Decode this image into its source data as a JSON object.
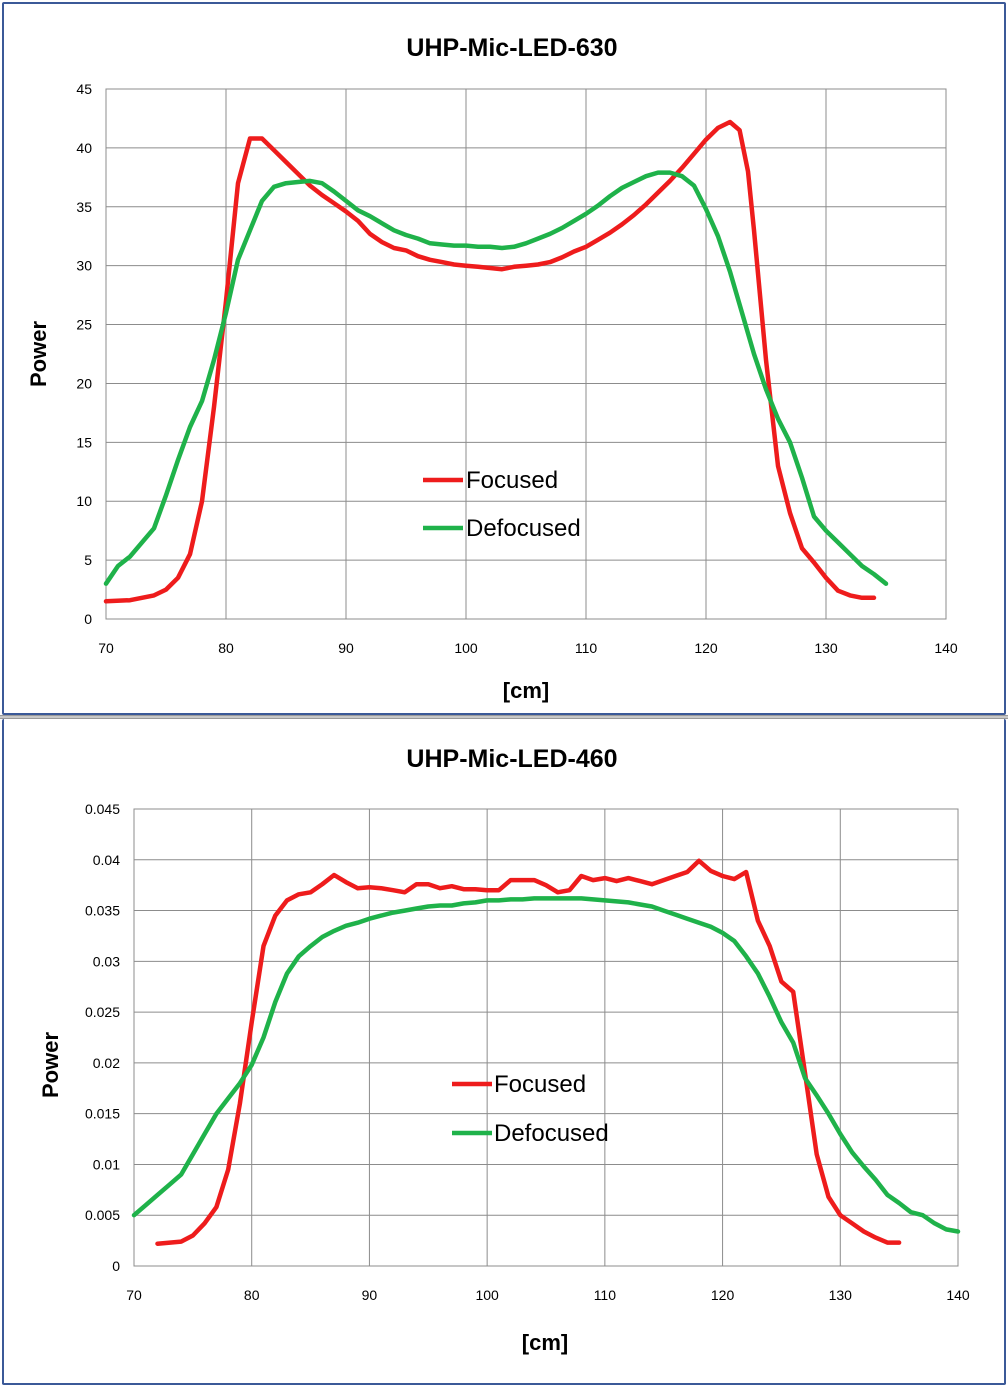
{
  "colors": {
    "focused": "#ee1c1c",
    "defocused": "#1fb24a",
    "frame": "#3b5998",
    "grid": "#8c8c8c"
  },
  "chart_data": [
    {
      "type": "line",
      "title": "UHP-Mic-LED-630",
      "xlabel": "[cm]",
      "ylabel": "Power",
      "xlim": [
        70,
        140
      ],
      "ylim": [
        0,
        45
      ],
      "x_ticks": [
        "70",
        "80",
        "90",
        "100",
        "110",
        "120",
        "130",
        "140"
      ],
      "y_ticks": [
        "0",
        "5",
        "10",
        "15",
        "20",
        "25",
        "30",
        "35",
        "40",
        "45"
      ],
      "grid": true,
      "legend_position": "center",
      "series": [
        {
          "name": "Focused",
          "color": "#ee1c1c",
          "points": [
            [
              70,
              1.5
            ],
            [
              72,
              1.6
            ],
            [
              74,
              2.0
            ],
            [
              75,
              2.5
            ],
            [
              76,
              3.5
            ],
            [
              77,
              5.5
            ],
            [
              78,
              10
            ],
            [
              79,
              18
            ],
            [
              80,
              27
            ],
            [
              81,
              37
            ],
            [
              82,
              40.8
            ],
            [
              83,
              40.8
            ],
            [
              84,
              39.8
            ],
            [
              85,
              38.8
            ],
            [
              86,
              37.8
            ],
            [
              87,
              36.8
            ],
            [
              88,
              36
            ],
            [
              89,
              35.3
            ],
            [
              90,
              34.6
            ],
            [
              91,
              33.8
            ],
            [
              92,
              32.7
            ],
            [
              93,
              32
            ],
            [
              94,
              31.5
            ],
            [
              95,
              31.3
            ],
            [
              96,
              30.8
            ],
            [
              97,
              30.5
            ],
            [
              98,
              30.3
            ],
            [
              99,
              30.1
            ],
            [
              100,
              30
            ],
            [
              101,
              29.9
            ],
            [
              102,
              29.8
            ],
            [
              103,
              29.7
            ],
            [
              104,
              29.9
            ],
            [
              105,
              30
            ],
            [
              106,
              30.1
            ],
            [
              107,
              30.3
            ],
            [
              108,
              30.7
            ],
            [
              109,
              31.2
            ],
            [
              110,
              31.6
            ],
            [
              111,
              32.2
            ],
            [
              112,
              32.8
            ],
            [
              113,
              33.5
            ],
            [
              114,
              34.3
            ],
            [
              115,
              35.2
            ],
            [
              116,
              36.2
            ],
            [
              117,
              37.2
            ],
            [
              118,
              38.3
            ],
            [
              119,
              39.5
            ],
            [
              120,
              40.7
            ],
            [
              121,
              41.7
            ],
            [
              122,
              42.2
            ],
            [
              122.8,
              41.5
            ],
            [
              123.5,
              38
            ],
            [
              124,
              33
            ],
            [
              125,
              22
            ],
            [
              126,
              13
            ],
            [
              127,
              9
            ],
            [
              128,
              6
            ],
            [
              129,
              4.8
            ],
            [
              130,
              3.5
            ],
            [
              131,
              2.4
            ],
            [
              132,
              2
            ],
            [
              133,
              1.8
            ],
            [
              134,
              1.8
            ]
          ]
        },
        {
          "name": "Defocused",
          "color": "#1fb24a",
          "points": [
            [
              70,
              3
            ],
            [
              71,
              4.5
            ],
            [
              72,
              5.3
            ],
            [
              73,
              6.5
            ],
            [
              74,
              7.7
            ],
            [
              75,
              10.5
            ],
            [
              76,
              13.5
            ],
            [
              77,
              16.3
            ],
            [
              78,
              18.5
            ],
            [
              79,
              22
            ],
            [
              80,
              26
            ],
            [
              81,
              30.5
            ],
            [
              82,
              33
            ],
            [
              83,
              35.5
            ],
            [
              84,
              36.7
            ],
            [
              85,
              37
            ],
            [
              86,
              37.1
            ],
            [
              87,
              37.2
            ],
            [
              88,
              37
            ],
            [
              89,
              36.3
            ],
            [
              90,
              35.5
            ],
            [
              91,
              34.7
            ],
            [
              92,
              34.2
            ],
            [
              93,
              33.6
            ],
            [
              94,
              33
            ],
            [
              95,
              32.6
            ],
            [
              96,
              32.3
            ],
            [
              97,
              31.9
            ],
            [
              98,
              31.8
            ],
            [
              99,
              31.7
            ],
            [
              100,
              31.7
            ],
            [
              101,
              31.6
            ],
            [
              102,
              31.6
            ],
            [
              103,
              31.5
            ],
            [
              104,
              31.6
            ],
            [
              105,
              31.9
            ],
            [
              106,
              32.3
            ],
            [
              107,
              32.7
            ],
            [
              108,
              33.2
            ],
            [
              109,
              33.8
            ],
            [
              110,
              34.4
            ],
            [
              111,
              35.1
            ],
            [
              112,
              35.9
            ],
            [
              113,
              36.6
            ],
            [
              114,
              37.1
            ],
            [
              115,
              37.6
            ],
            [
              116,
              37.9
            ],
            [
              117,
              37.9
            ],
            [
              118,
              37.6
            ],
            [
              119,
              36.8
            ],
            [
              120,
              34.8
            ],
            [
              121,
              32.5
            ],
            [
              122,
              29.5
            ],
            [
              123,
              26
            ],
            [
              124,
              22.5
            ],
            [
              125,
              19.5
            ],
            [
              126,
              17
            ],
            [
              127,
              15
            ],
            [
              128,
              12
            ],
            [
              129,
              8.7
            ],
            [
              130,
              7.5
            ],
            [
              131,
              6.5
            ],
            [
              132,
              5.5
            ],
            [
              133,
              4.5
            ],
            [
              134,
              3.8
            ],
            [
              135,
              3
            ]
          ]
        }
      ]
    },
    {
      "type": "line",
      "title": "UHP-Mic-LED-460",
      "xlabel": "[cm]",
      "ylabel": "Power",
      "xlim": [
        70,
        140
      ],
      "ylim": [
        0,
        0.045
      ],
      "x_ticks": [
        "70",
        "80",
        "90",
        "100",
        "110",
        "120",
        "130",
        "140"
      ],
      "y_ticks": [
        "0",
        "0.005",
        "0.01",
        "0.015",
        "0.02",
        "0.025",
        "0.03",
        "0.035",
        "0.04",
        "0.045"
      ],
      "grid": true,
      "legend_position": "center",
      "series": [
        {
          "name": "Focused",
          "color": "#ee1c1c",
          "points": [
            [
              72,
              0.0022
            ],
            [
              74,
              0.0024
            ],
            [
              75,
              0.003
            ],
            [
              76,
              0.0042
            ],
            [
              77,
              0.0058
            ],
            [
              78,
              0.0095
            ],
            [
              79,
              0.016
            ],
            [
              80,
              0.024
            ],
            [
              81,
              0.0315
            ],
            [
              82,
              0.0345
            ],
            [
              83,
              0.036
            ],
            [
              84,
              0.0366
            ],
            [
              85,
              0.0368
            ],
            [
              86,
              0.0376
            ],
            [
              87,
              0.0385
            ],
            [
              88,
              0.0378
            ],
            [
              89,
              0.0372
            ],
            [
              90,
              0.0373
            ],
            [
              91,
              0.0372
            ],
            [
              92,
              0.037
            ],
            [
              93,
              0.0368
            ],
            [
              94,
              0.0376
            ],
            [
              95,
              0.0376
            ],
            [
              96,
              0.0372
            ],
            [
              97,
              0.0374
            ],
            [
              98,
              0.0371
            ],
            [
              99,
              0.0371
            ],
            [
              100,
              0.037
            ],
            [
              101,
              0.037
            ],
            [
              102,
              0.038
            ],
            [
              103,
              0.038
            ],
            [
              104,
              0.038
            ],
            [
              105,
              0.0375
            ],
            [
              106,
              0.0368
            ],
            [
              107,
              0.037
            ],
            [
              108,
              0.0384
            ],
            [
              109,
              0.038
            ],
            [
              110,
              0.0382
            ],
            [
              111,
              0.0379
            ],
            [
              112,
              0.0382
            ],
            [
              113,
              0.0379
            ],
            [
              114,
              0.0376
            ],
            [
              115,
              0.038
            ],
            [
              116,
              0.0384
            ],
            [
              117,
              0.0388
            ],
            [
              118,
              0.0399
            ],
            [
              119,
              0.0389
            ],
            [
              120,
              0.0384
            ],
            [
              121,
              0.0381
            ],
            [
              122,
              0.0388
            ],
            [
              123,
              0.034
            ],
            [
              124,
              0.0315
            ],
            [
              125,
              0.028
            ],
            [
              126,
              0.027
            ],
            [
              127,
              0.019
            ],
            [
              128,
              0.011
            ],
            [
              129,
              0.0068
            ],
            [
              130,
              0.005
            ],
            [
              131,
              0.0042
            ],
            [
              132,
              0.0034
            ],
            [
              133,
              0.0028
            ],
            [
              134,
              0.0023
            ],
            [
              135,
              0.0023
            ]
          ]
        },
        {
          "name": "Defocused",
          "color": "#1fb24a",
          "points": [
            [
              70,
              0.005
            ],
            [
              71,
              0.006
            ],
            [
              72,
              0.007
            ],
            [
              73,
              0.008
            ],
            [
              74,
              0.009
            ],
            [
              75,
              0.011
            ],
            [
              76,
              0.013
            ],
            [
              77,
              0.015
            ],
            [
              78,
              0.0165
            ],
            [
              79,
              0.018
            ],
            [
              80,
              0.0198
            ],
            [
              81,
              0.0225
            ],
            [
              82,
              0.026
            ],
            [
              83,
              0.0288
            ],
            [
              84,
              0.0305
            ],
            [
              85,
              0.0315
            ],
            [
              86,
              0.0324
            ],
            [
              87,
              0.033
            ],
            [
              88,
              0.0335
            ],
            [
              89,
              0.0338
            ],
            [
              90,
              0.0342
            ],
            [
              91,
              0.0345
            ],
            [
              92,
              0.0348
            ],
            [
              93,
              0.035
            ],
            [
              94,
              0.0352
            ],
            [
              95,
              0.0354
            ],
            [
              96,
              0.0355
            ],
            [
              97,
              0.0355
            ],
            [
              98,
              0.0357
            ],
            [
              99,
              0.0358
            ],
            [
              100,
              0.036
            ],
            [
              101,
              0.036
            ],
            [
              102,
              0.0361
            ],
            [
              103,
              0.0361
            ],
            [
              104,
              0.0362
            ],
            [
              105,
              0.0362
            ],
            [
              106,
              0.0362
            ],
            [
              107,
              0.0362
            ],
            [
              108,
              0.0362
            ],
            [
              109,
              0.0361
            ],
            [
              110,
              0.036
            ],
            [
              111,
              0.0359
            ],
            [
              112,
              0.0358
            ],
            [
              113,
              0.0356
            ],
            [
              114,
              0.0354
            ],
            [
              115,
              0.035
            ],
            [
              116,
              0.0346
            ],
            [
              117,
              0.0342
            ],
            [
              118,
              0.0338
            ],
            [
              119,
              0.0334
            ],
            [
              120,
              0.0328
            ],
            [
              121,
              0.032
            ],
            [
              122,
              0.0305
            ],
            [
              123,
              0.0288
            ],
            [
              124,
              0.0265
            ],
            [
              125,
              0.024
            ],
            [
              126,
              0.022
            ],
            [
              127,
              0.0185
            ],
            [
              128,
              0.0168
            ],
            [
              129,
              0.015
            ],
            [
              130,
              0.013
            ],
            [
              131,
              0.0112
            ],
            [
              132,
              0.0098
            ],
            [
              133,
              0.0085
            ],
            [
              134,
              0.007
            ],
            [
              135,
              0.0062
            ],
            [
              136,
              0.0053
            ],
            [
              137,
              0.005
            ],
            [
              138,
              0.0042
            ],
            [
              139,
              0.0036
            ],
            [
              140,
              0.0034
            ]
          ]
        }
      ]
    }
  ]
}
